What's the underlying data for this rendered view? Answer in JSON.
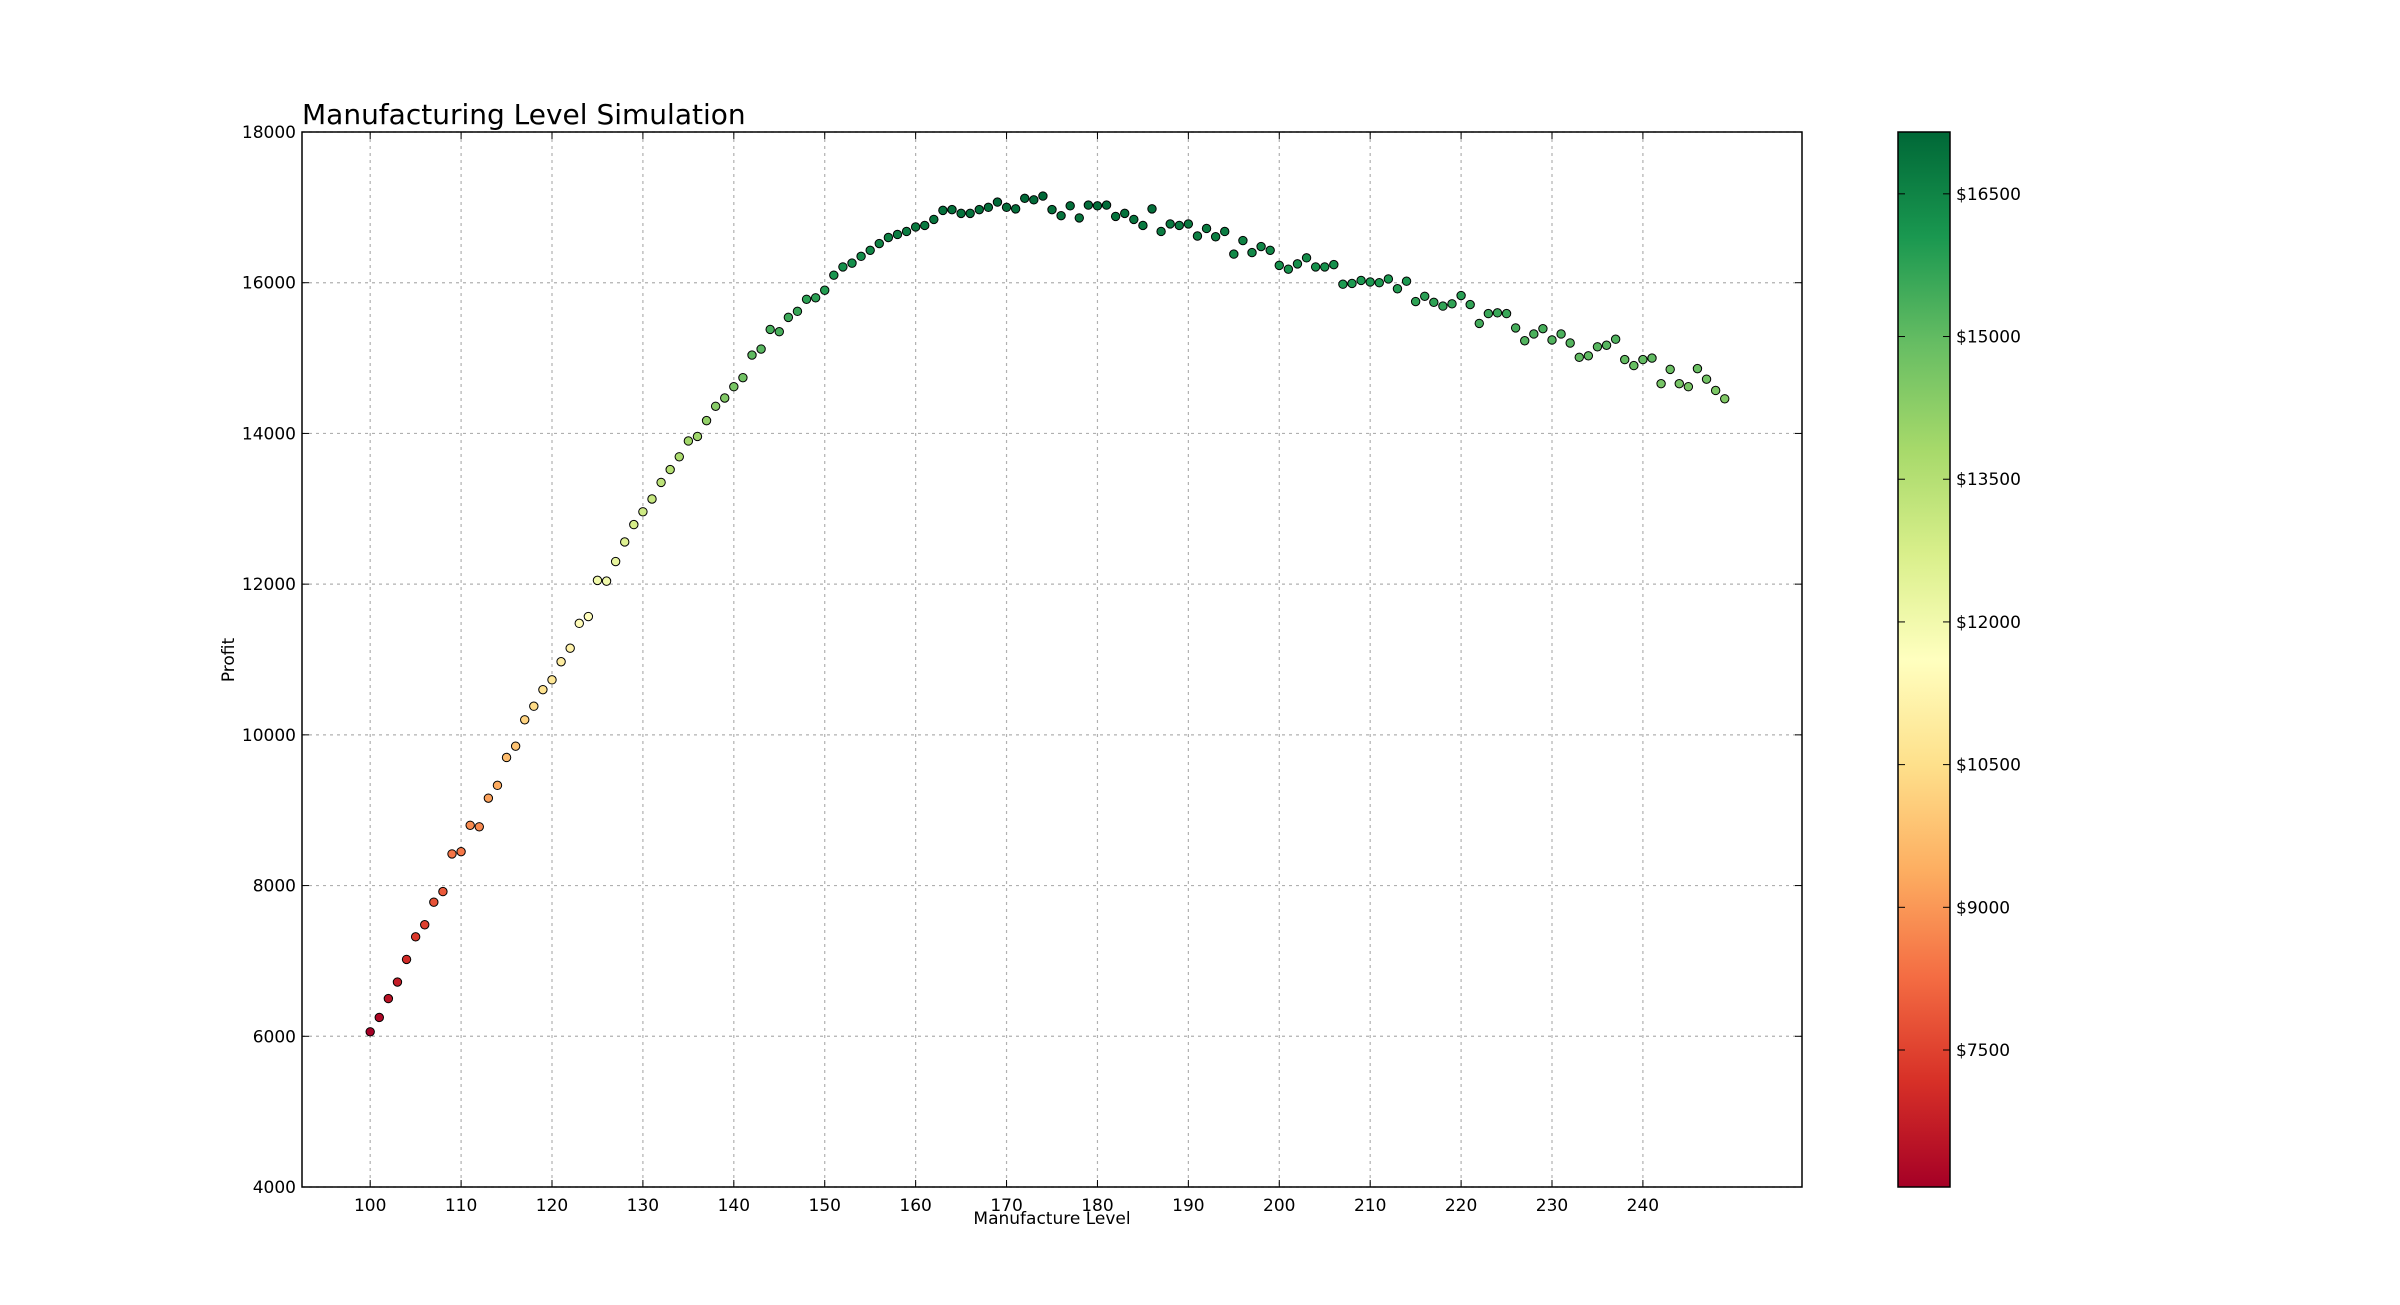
{
  "chart_data": {
    "type": "scatter",
    "title": "Manufacturing Level Simulation",
    "xlabel": "Manufacture Level",
    "ylabel": "Profit",
    "xlim": [
      92.5,
      257.5
    ],
    "ylim": [
      4000,
      18000
    ],
    "xticks": [
      "100",
      "110",
      "120",
      "130",
      "140",
      "150",
      "160",
      "170",
      "180",
      "190",
      "200",
      "210",
      "220",
      "230",
      "240"
    ],
    "yticks": [
      "4000",
      "6000",
      "8000",
      "10000",
      "12000",
      "14000",
      "16000",
      "18000"
    ],
    "grid": true,
    "colormap": [
      "#a50026",
      "#d73027",
      "#f46d43",
      "#fdae61",
      "#fee08b",
      "#ffffbf",
      "#d9ef8b",
      "#a6d96a",
      "#66bd63",
      "#1a9850",
      "#006837"
    ],
    "color_range": [
      6060,
      17150
    ],
    "colorbar_ticks": [
      "$7500",
      "$9000",
      "$10500",
      "$12000",
      "$13500",
      "$15000",
      "$16500"
    ],
    "x": [
      100,
      101,
      102,
      103,
      104,
      105,
      106,
      107,
      108,
      109,
      110,
      111,
      112,
      113,
      114,
      115,
      116,
      117,
      118,
      119,
      120,
      121,
      122,
      123,
      124,
      125,
      126,
      127,
      128,
      129,
      130,
      131,
      132,
      133,
      134,
      135,
      136,
      137,
      138,
      139,
      140,
      141,
      142,
      143,
      144,
      145,
      146,
      147,
      148,
      149,
      150,
      151,
      152,
      153,
      154,
      155,
      156,
      157,
      158,
      159,
      160,
      161,
      162,
      163,
      164,
      165,
      166,
      167,
      168,
      169,
      170,
      171,
      172,
      173,
      174,
      175,
      176,
      177,
      178,
      179,
      180,
      181,
      182,
      183,
      184,
      185,
      186,
      187,
      188,
      189,
      190,
      191,
      192,
      193,
      194,
      195,
      196,
      197,
      198,
      199,
      200,
      201,
      202,
      203,
      204,
      205,
      206,
      207,
      208,
      209,
      210,
      211,
      212,
      213,
      214,
      215,
      216,
      217,
      218,
      219,
      220,
      221,
      222,
      223,
      224,
      225,
      226,
      227,
      228,
      229,
      230,
      231,
      232,
      233,
      234,
      235,
      236,
      237,
      238,
      239,
      240,
      241,
      242,
      243,
      244,
      245,
      246,
      247,
      248,
      249
    ],
    "y": [
      6060,
      6250,
      6500,
      6720,
      7020,
      7320,
      7480,
      7780,
      7920,
      8420,
      8450,
      8800,
      8780,
      9160,
      9330,
      9700,
      9850,
      10200,
      10380,
      10600,
      10730,
      10970,
      11150,
      11480,
      11570,
      12050,
      12040,
      12300,
      12560,
      12790,
      12960,
      13130,
      13350,
      13520,
      13690,
      13900,
      13960,
      14170,
      14360,
      14470,
      14620,
      14740,
      15040,
      15120,
      15380,
      15350,
      15540,
      15620,
      15780,
      15800,
      15900,
      16100,
      16210,
      16260,
      16350,
      16430,
      16520,
      16600,
      16640,
      16680,
      16740,
      16760,
      16840,
      16960,
      16970,
      16920,
      16920,
      16970,
      17000,
      17070,
      17000,
      16980,
      17120,
      17100,
      17150,
      16970,
      16890,
      17020,
      16860,
      17030,
      17020,
      17030,
      16880,
      16920,
      16840,
      16760,
      16980,
      16680,
      16780,
      16760,
      16780,
      16620,
      16720,
      16610,
      16680,
      16380,
      16560,
      16400,
      16480,
      16430,
      16230,
      16180,
      16250,
      16330,
      16210,
      16210,
      16240,
      15980,
      15990,
      16030,
      16010,
      16000,
      16050,
      15920,
      16020,
      15750,
      15820,
      15740,
      15690,
      15720,
      15830,
      15710,
      15460,
      15590,
      15600,
      15590,
      15400,
      15230,
      15320,
      15390,
      15240,
      15320,
      15200,
      15010,
      15030,
      15150,
      15170,
      15250,
      14980,
      14900,
      14980,
      15000,
      14660,
      14850,
      14660,
      14620,
      14860,
      14720,
      14570,
      14460
    ]
  }
}
